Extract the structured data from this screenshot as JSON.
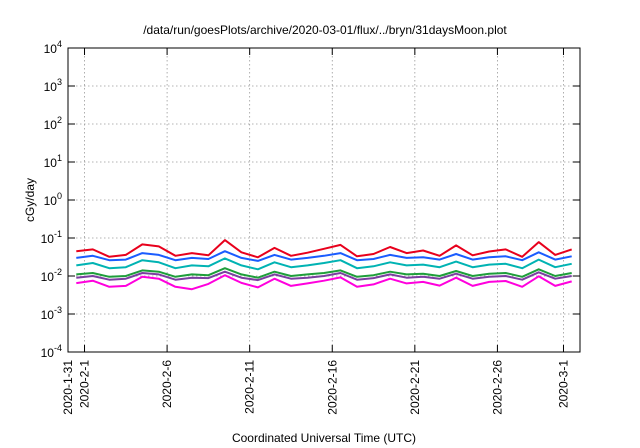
{
  "chart_data": {
    "type": "line",
    "title": "/data/run/goesPlots/archive/2020-03-01/flux/../bryn/31daysMoon.plot",
    "xlabel": "Coordinated Universal Time (UTC)",
    "ylabel": "cGy/day",
    "yscale": "log",
    "ylim": [
      0.0001,
      10000
    ],
    "xlim": [
      "2020-01-31",
      "2020-03-02"
    ],
    "grid": true,
    "x_ticks": [
      "2020-1-31",
      "2020-2-1",
      "2020-2-6",
      "2020-2-11",
      "2020-2-16",
      "2020-2-21",
      "2020-2-26",
      "2020-3-1"
    ],
    "y_ticks": [
      {
        "base": "10",
        "exp": "-4"
      },
      {
        "base": "10",
        "exp": "-3"
      },
      {
        "base": "10",
        "exp": "-2"
      },
      {
        "base": "10",
        "exp": "-1"
      },
      {
        "base": "10",
        "exp": "0"
      },
      {
        "base": "10",
        "exp": "1"
      },
      {
        "base": "10",
        "exp": "2"
      },
      {
        "base": "10",
        "exp": "3"
      },
      {
        "base": "10",
        "exp": "4"
      }
    ],
    "series": [
      {
        "color": "#e8001c",
        "values": [
          0.045,
          0.05,
          0.032,
          0.036,
          0.068,
          0.06,
          0.034,
          0.04,
          0.035,
          0.088,
          0.042,
          0.031,
          0.055,
          0.034,
          0.041,
          0.052,
          0.066,
          0.033,
          0.038,
          0.058,
          0.04,
          0.047,
          0.034,
          0.064,
          0.035,
          0.044,
          0.05,
          0.032,
          0.078,
          0.036,
          0.05
        ]
      },
      {
        "color": "#1a5cff",
        "values": [
          0.03,
          0.034,
          0.026,
          0.027,
          0.04,
          0.036,
          0.026,
          0.03,
          0.028,
          0.045,
          0.03,
          0.025,
          0.036,
          0.027,
          0.03,
          0.034,
          0.04,
          0.026,
          0.028,
          0.036,
          0.03,
          0.031,
          0.027,
          0.038,
          0.027,
          0.031,
          0.033,
          0.026,
          0.042,
          0.027,
          0.033
        ]
      },
      {
        "color": "#00b3b3",
        "values": [
          0.019,
          0.022,
          0.016,
          0.017,
          0.026,
          0.023,
          0.016,
          0.019,
          0.018,
          0.029,
          0.019,
          0.015,
          0.023,
          0.017,
          0.019,
          0.022,
          0.026,
          0.016,
          0.018,
          0.023,
          0.019,
          0.02,
          0.017,
          0.024,
          0.017,
          0.02,
          0.021,
          0.016,
          0.027,
          0.017,
          0.021
        ]
      },
      {
        "color": "#1e9e3a",
        "values": [
          0.011,
          0.012,
          0.0095,
          0.01,
          0.014,
          0.013,
          0.0095,
          0.011,
          0.0105,
          0.016,
          0.011,
          0.009,
          0.013,
          0.01,
          0.011,
          0.012,
          0.014,
          0.0095,
          0.0105,
          0.013,
          0.011,
          0.0115,
          0.01,
          0.0135,
          0.01,
          0.0115,
          0.012,
          0.0095,
          0.015,
          0.01,
          0.012
        ]
      },
      {
        "color": "#7a3fa0",
        "values": [
          0.009,
          0.01,
          0.008,
          0.0085,
          0.012,
          0.011,
          0.008,
          0.009,
          0.0088,
          0.013,
          0.009,
          0.0078,
          0.011,
          0.0085,
          0.009,
          0.01,
          0.012,
          0.008,
          0.0088,
          0.011,
          0.009,
          0.0095,
          0.0085,
          0.0115,
          0.0085,
          0.0095,
          0.01,
          0.008,
          0.0125,
          0.0085,
          0.01
        ]
      },
      {
        "color": "#ff00dd",
        "values": [
          0.0065,
          0.0075,
          0.0052,
          0.0055,
          0.0095,
          0.0085,
          0.0052,
          0.0045,
          0.0062,
          0.0105,
          0.0066,
          0.005,
          0.0085,
          0.0055,
          0.0064,
          0.0075,
          0.0092,
          0.0052,
          0.006,
          0.0085,
          0.0064,
          0.007,
          0.0056,
          0.009,
          0.0055,
          0.007,
          0.0074,
          0.0052,
          0.0098,
          0.0055,
          0.0072
        ]
      }
    ]
  }
}
